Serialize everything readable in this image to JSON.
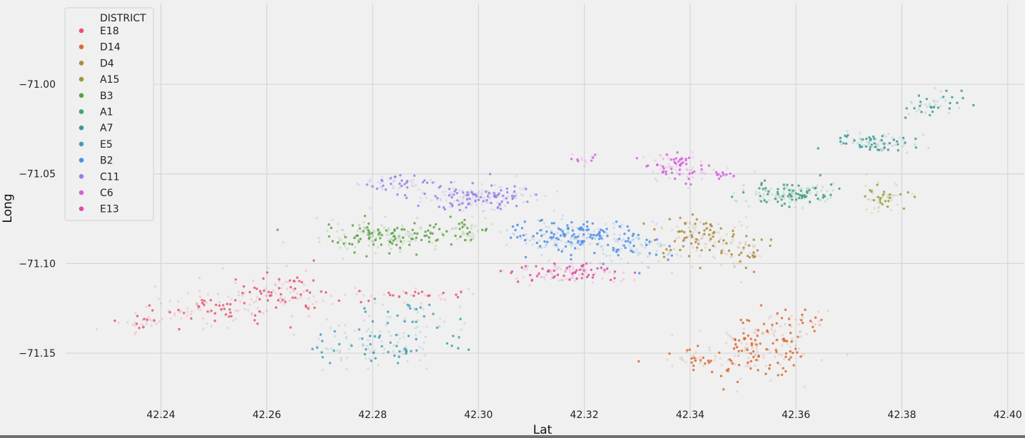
{
  "chart_data": {
    "type": "scatter",
    "title": "",
    "xlabel": "Lat",
    "ylabel": "Long",
    "xlim": [
      42.222,
      42.403
    ],
    "ylim": [
      -71.185,
      -70.955
    ],
    "xticks": [
      "42.24",
      "42.26",
      "42.28",
      "42.30",
      "42.32",
      "42.34",
      "42.36",
      "42.38",
      "42.40"
    ],
    "yticks": [
      "-71.00",
      "-71.05",
      "-71.10",
      "-71.15"
    ],
    "grid": true,
    "legend_position": "top-left",
    "legend_title": "DISTRICT",
    "series": [
      {
        "name": "E18",
        "color": "#e8536f",
        "clusters": [
          [
            42.25,
            -71.125,
            0.012,
            0.008,
            110
          ],
          [
            42.264,
            -71.115,
            0.008,
            0.01,
            90
          ],
          [
            42.236,
            -71.133,
            0.004,
            0.004,
            30
          ],
          [
            42.285,
            -71.118,
            0.01,
            0.004,
            40
          ]
        ]
      },
      {
        "name": "D14",
        "color": "#da6a36",
        "clusters": [
          [
            42.352,
            -71.148,
            0.009,
            0.013,
            170
          ],
          [
            42.34,
            -71.153,
            0.006,
            0.006,
            40
          ],
          [
            42.36,
            -71.134,
            0.006,
            0.008,
            40
          ]
        ]
      },
      {
        "name": "D4",
        "color": "#b08a3c",
        "clusters": [
          [
            42.342,
            -71.085,
            0.008,
            0.01,
            140
          ],
          [
            42.35,
            -71.095,
            0.004,
            0.008,
            40
          ]
        ]
      },
      {
        "name": "A15",
        "color": "#9b9a3a",
        "clusters": [
          [
            42.377,
            -71.063,
            0.004,
            0.006,
            55
          ]
        ]
      },
      {
        "name": "B3",
        "color": "#5aa342",
        "clusters": [
          [
            42.282,
            -71.085,
            0.01,
            0.007,
            190
          ],
          [
            42.298,
            -71.082,
            0.005,
            0.006,
            50
          ]
        ]
      },
      {
        "name": "A1",
        "color": "#3fa17a",
        "clusters": [
          [
            42.359,
            -71.061,
            0.007,
            0.005,
            140
          ]
        ]
      },
      {
        "name": "A7",
        "color": "#399b97",
        "clusters": [
          [
            42.375,
            -71.033,
            0.006,
            0.004,
            90
          ],
          [
            42.386,
            -71.012,
            0.004,
            0.008,
            45
          ]
        ]
      },
      {
        "name": "E5",
        "color": "#3d9fb6",
        "clusters": [
          [
            42.282,
            -71.145,
            0.012,
            0.012,
            130
          ],
          [
            42.288,
            -71.13,
            0.006,
            0.008,
            35
          ]
        ]
      },
      {
        "name": "B2",
        "color": "#4a8fe8",
        "clusters": [
          [
            42.318,
            -71.085,
            0.01,
            0.008,
            230
          ],
          [
            42.33,
            -71.092,
            0.006,
            0.008,
            70
          ]
        ]
      },
      {
        "name": "C11",
        "color": "#9a7ee8",
        "clusters": [
          [
            42.3,
            -71.063,
            0.01,
            0.006,
            200
          ],
          [
            42.284,
            -71.055,
            0.006,
            0.004,
            50
          ]
        ]
      },
      {
        "name": "C6",
        "color": "#d660de",
        "clusters": [
          [
            42.337,
            -71.045,
            0.004,
            0.007,
            90
          ],
          [
            42.32,
            -71.042,
            0.002,
            0.003,
            15
          ],
          [
            42.345,
            -71.05,
            0.005,
            0.003,
            25
          ]
        ]
      },
      {
        "name": "E13",
        "color": "#e04fa4",
        "clusters": [
          [
            42.317,
            -71.105,
            0.009,
            0.005,
            120
          ]
        ]
      }
    ]
  }
}
